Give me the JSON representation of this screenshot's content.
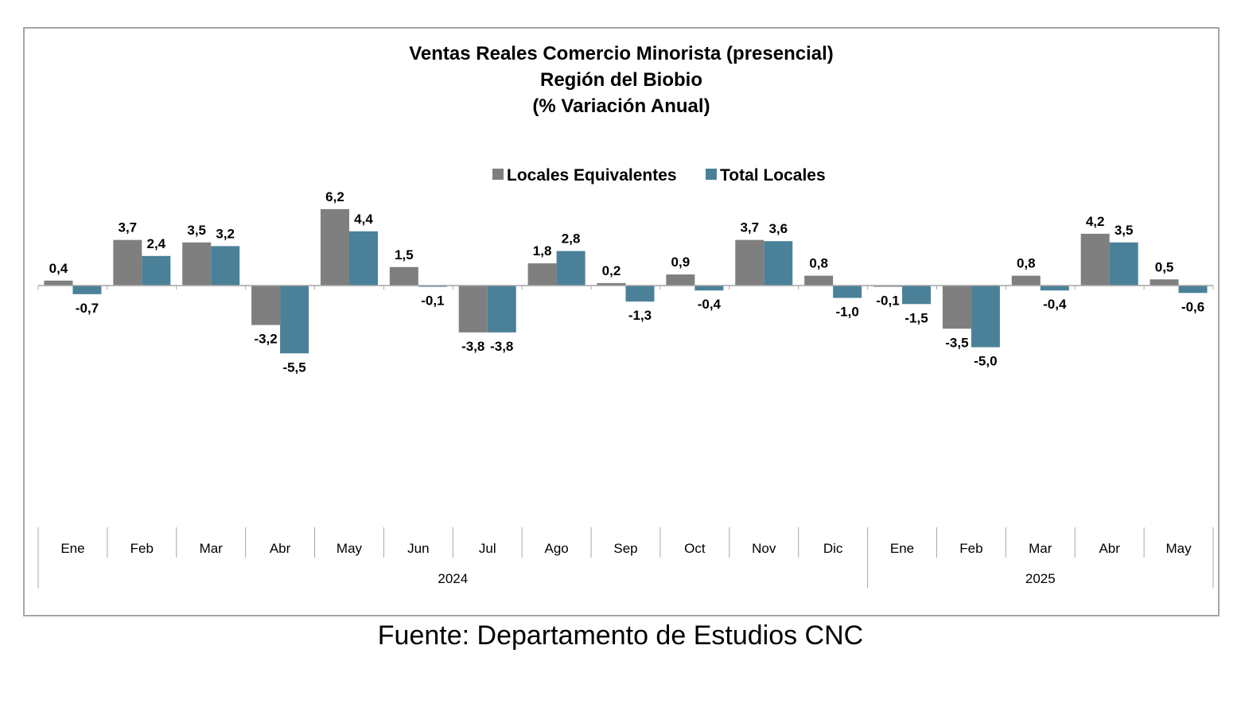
{
  "chart_data": {
    "type": "bar",
    "title": [
      "Ventas Reales Comercio Minorista (presencial)",
      "Región del Biobio",
      "(% Variación Anual)"
    ],
    "categories": [
      "Ene",
      "Feb",
      "Mar",
      "Abr",
      "May",
      "Jun",
      "Jul",
      "Ago",
      "Sep",
      "Oct",
      "Nov",
      "Dic",
      "Ene",
      "Feb",
      "Mar",
      "Abr",
      "May"
    ],
    "groups": [
      {
        "label": "2024",
        "count": 12
      },
      {
        "label": "2025",
        "count": 5
      }
    ],
    "series": [
      {
        "name": "Locales Equivalentes",
        "color": "#7f7f7f",
        "values": [
          0.4,
          3.7,
          3.5,
          -3.2,
          6.2,
          1.5,
          -3.8,
          1.8,
          0.2,
          0.9,
          3.7,
          0.8,
          -0.1,
          -3.5,
          0.8,
          4.2,
          0.5
        ],
        "labels": [
          "0,4",
          "3,7",
          "3,5",
          "-3,2",
          "6,2",
          "1,5",
          "-3,8",
          "1,8",
          "0,2",
          "0,9",
          "3,7",
          "0,8",
          "-0,1",
          "-3,5",
          "0,8",
          "4,2",
          "0,5"
        ]
      },
      {
        "name": "Total Locales",
        "color": "#4a8199",
        "values": [
          -0.7,
          2.4,
          3.2,
          -5.5,
          4.4,
          -0.1,
          -3.8,
          2.8,
          -1.3,
          -0.4,
          3.6,
          -1.0,
          -1.5,
          -5.0,
          -0.4,
          3.5,
          -0.6
        ],
        "labels": [
          "-0,7",
          "2,4",
          "3,2",
          "-5,5",
          "4,4",
          "-0,1",
          "-3,8",
          "2,8",
          "-1,3",
          "-0,4",
          "3,6",
          "-1,0",
          "-1,5",
          "-5,0",
          "-0,4",
          "3,5",
          "-0,6"
        ]
      }
    ],
    "legend_position": "top-center",
    "grid": false
  },
  "source_note": "Fuente: Departamento de Estudios CNC"
}
